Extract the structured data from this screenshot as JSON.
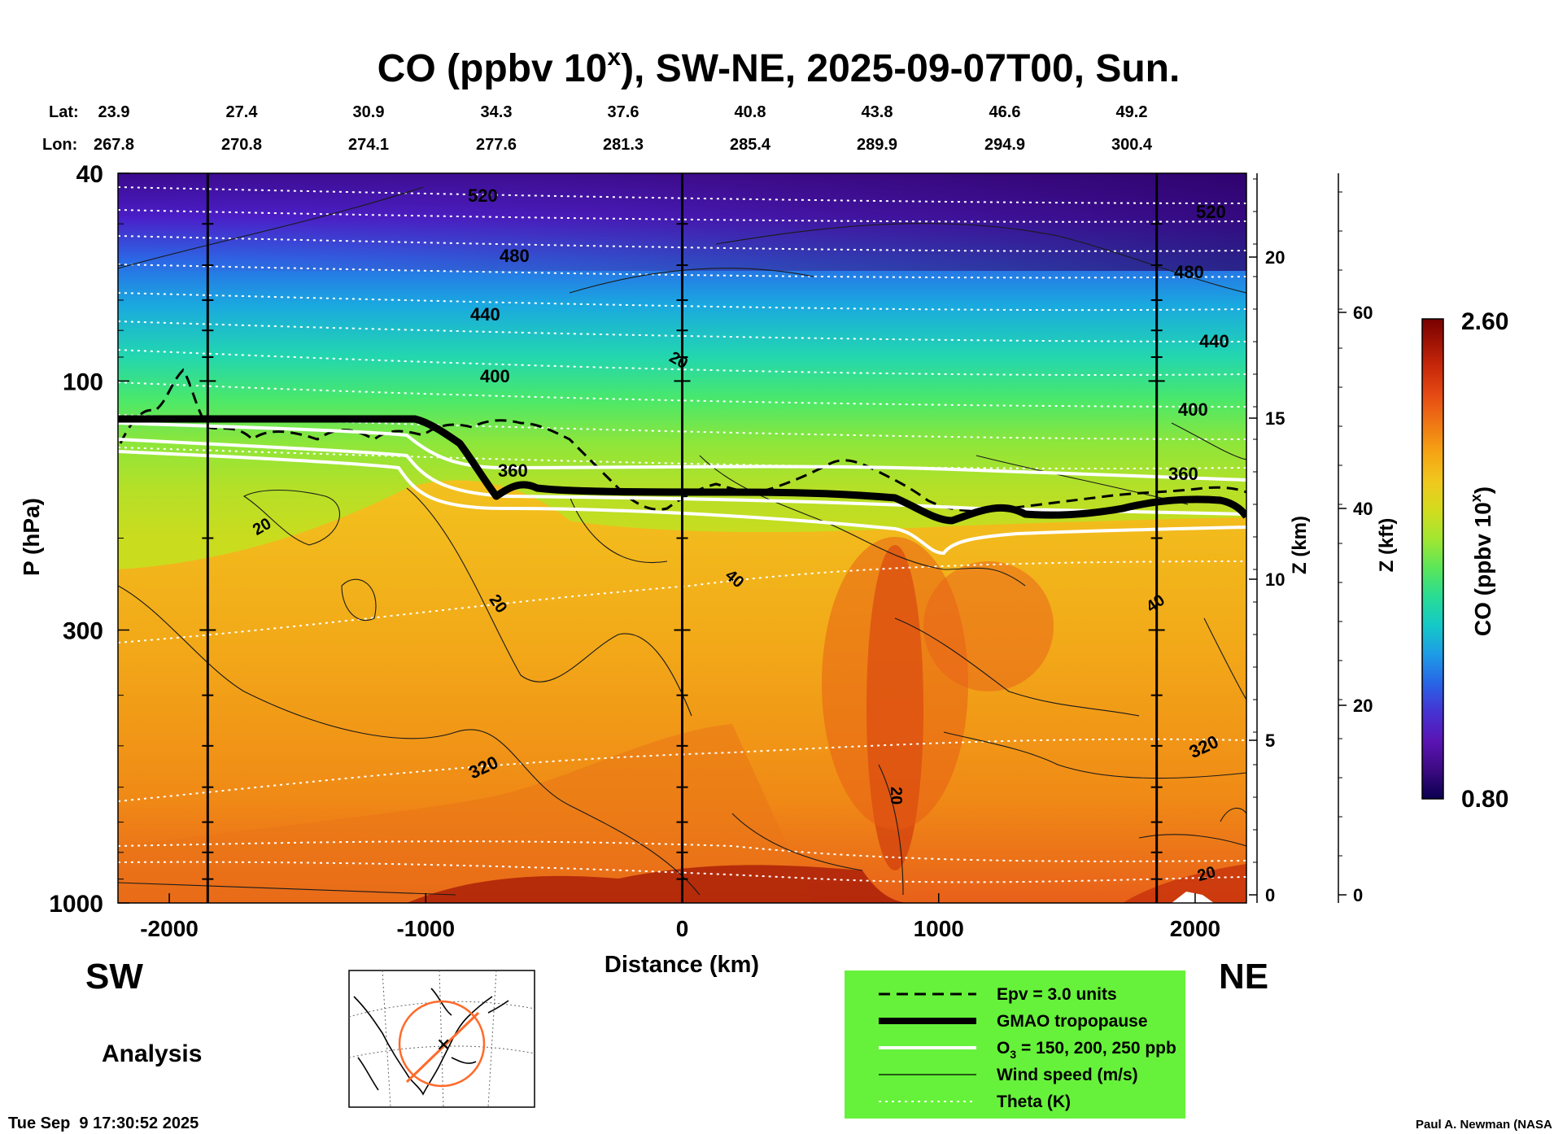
{
  "chart_data": {
    "type": "heatmap",
    "title_main": "CO (ppbv 10",
    "title_sup": "x",
    "title_rest": "), SW-NE, 2025-09-07T00, Sun.",
    "lat_label": "Lat:",
    "lon_label": "Lon:",
    "lat": [
      "23.9",
      "27.4",
      "30.9",
      "34.3",
      "37.6",
      "40.8",
      "43.8",
      "46.6",
      "49.2"
    ],
    "lon": [
      "267.8",
      "270.8",
      "274.1",
      "277.6",
      "281.3",
      "285.4",
      "289.9",
      "294.9",
      "300.4"
    ],
    "xlabel": "Distance (km)",
    "xlim": [
      -2200,
      2200
    ],
    "xticks": [
      "-2000",
      "-1000",
      "0",
      "1000",
      "2000"
    ],
    "xtick_values": [
      -2000,
      -1000,
      0,
      1000,
      2000
    ],
    "ylabel": "P (hPa)",
    "ylim": [
      1000,
      40
    ],
    "yscale": "log",
    "yticks": [
      "40",
      "100",
      "300",
      "1000"
    ],
    "ytick_values": [
      40,
      100,
      300,
      1000
    ],
    "z_km_label": "Z (km)",
    "z_km_ticks": [
      "0",
      "5",
      "10",
      "15",
      "20"
    ],
    "z_kft_label": "Z (kft)",
    "z_kft_ticks": [
      "0",
      "20",
      "40",
      "60"
    ],
    "vertical_lines_km": [
      -1850,
      0,
      1850
    ],
    "theta_levels": [
      "320",
      "360",
      "400",
      "440",
      "480",
      "520"
    ],
    "wind_labels": [
      "20",
      "40",
      "20",
      "20",
      "40",
      "20",
      "20"
    ],
    "tropopause_km_hpa": [
      [
        -2200,
        114
      ],
      [
        -1700,
        114
      ],
      [
        -1100,
        114
      ],
      [
        -1000,
        126
      ],
      [
        -850,
        150
      ],
      [
        -650,
        156
      ],
      [
        0,
        156
      ],
      [
        900,
        168
      ],
      [
        1300,
        166
      ],
      [
        1800,
        156
      ],
      [
        2200,
        163
      ]
    ],
    "ozone_250_km_hpa": [
      [
        -2200,
        118
      ],
      [
        -1500,
        123
      ],
      [
        -1100,
        125
      ],
      [
        -1000,
        140
      ],
      [
        -800,
        146
      ],
      [
        0,
        146
      ],
      [
        1000,
        148
      ],
      [
        1800,
        152
      ],
      [
        2200,
        154
      ]
    ],
    "ozone_200_km_hpa": [
      [
        -2200,
        123
      ],
      [
        -1500,
        128
      ],
      [
        -1100,
        131
      ],
      [
        -1000,
        153
      ],
      [
        0,
        158
      ],
      [
        1000,
        165
      ],
      [
        1800,
        160
      ],
      [
        2200,
        166
      ]
    ],
    "ozone_150_km_hpa": [
      [
        -2200,
        128
      ],
      [
        -1500,
        134
      ],
      [
        -1100,
        140
      ],
      [
        -950,
        165
      ],
      [
        0,
        168
      ],
      [
        800,
        175
      ],
      [
        1000,
        185
      ],
      [
        1100,
        176
      ],
      [
        2200,
        172
      ]
    ],
    "colorbar": {
      "label_main": "CO (ppbv 10",
      "label_sup": "x",
      "label_end": ")",
      "min": "0.80",
      "max": "2.60",
      "colors": [
        "#0a0050",
        "#3c0a82",
        "#5a14b4",
        "#4632d2",
        "#2864e6",
        "#1e9be6",
        "#14c8c8",
        "#28dc96",
        "#5ae65a",
        "#a0e632",
        "#d2dc1e",
        "#f0c81e",
        "#f5a514",
        "#f07814",
        "#e64b14",
        "#c8280a",
        "#a01405",
        "#780000"
      ]
    },
    "legend": {
      "items": [
        "Epv = 3.0 units",
        "GMAO tropopause",
        "O",
        "Wind speed (m/s)",
        "Theta (K)"
      ],
      "ozone_sub": "3",
      "ozone_rest": " = 150, 200, 250 ppb",
      "bg_color": "#66f23a"
    },
    "sw_label": "SW",
    "ne_label": "NE",
    "analysis_label": "Analysis"
  },
  "footer": {
    "timestamp": "Tue Sep  9 17:30:52 2025",
    "credit": "Paul A. Newman (NASA"
  }
}
